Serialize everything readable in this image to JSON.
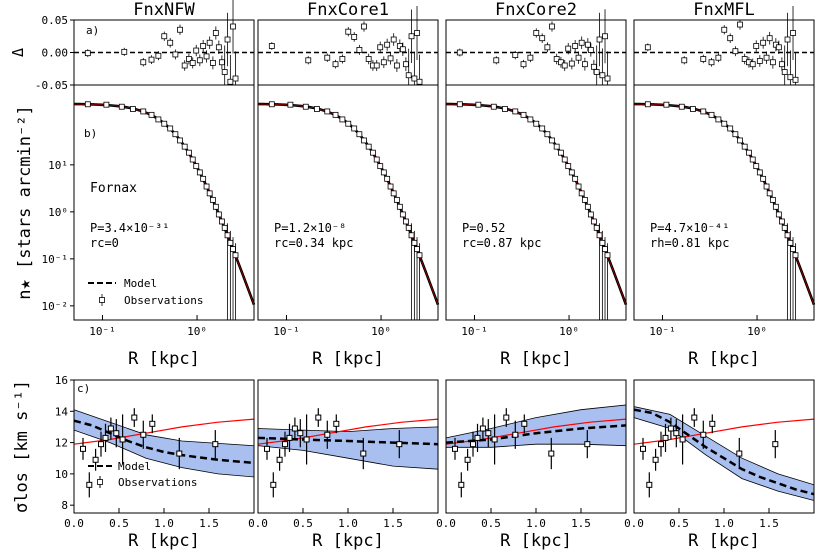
{
  "chart_data": {
    "type": "multi-panel scientific figure",
    "panel_titles": [
      "FnxNFW",
      "FnxCore1",
      "FnxCore2",
      "FnxMFL"
    ],
    "row_labels": {
      "a": "a)",
      "b": "b)",
      "c": "c)"
    },
    "xlabel": "R [kpc]",
    "residual": {
      "ylabel": "Δ",
      "ylim": [
        -0.05,
        0.05
      ],
      "yticks": [
        "0.05",
        "0.00",
        "-0.05"
      ],
      "reference_line": 0.0,
      "R_kpc": [
        0.07,
        0.17,
        0.27,
        0.33,
        0.39,
        0.45,
        0.52,
        0.59,
        0.66,
        0.74,
        0.82,
        0.9,
        0.98,
        1.07,
        1.16,
        1.26,
        1.36,
        1.47,
        1.58,
        1.7,
        1.83,
        1.96,
        2.1,
        2.25,
        2.4,
        2.55
      ],
      "panels": [
        [
          -0.001,
          0.001,
          -0.015,
          -0.011,
          -0.005,
          0.025,
          0.015,
          -0.003,
          0.035,
          -0.02,
          -0.01,
          -0.016,
          0.003,
          -0.012,
          0.01,
          -0.006,
          0.015,
          -0.016,
          0.03,
          0.008,
          -0.015,
          -0.03,
          0.02,
          -0.045,
          0.04,
          -0.04
        ],
        [
          0.01,
          -0.012,
          -0.008,
          -0.018,
          -0.01,
          0.032,
          0.024,
          0.004,
          0.04,
          -0.01,
          -0.02,
          -0.02,
          0.008,
          -0.015,
          0.012,
          -0.009,
          0.02,
          -0.02,
          0.01,
          0.005,
          -0.018,
          -0.035,
          0.025,
          -0.04,
          0.03,
          -0.045
        ],
        [
          0.0,
          -0.012,
          -0.004,
          -0.018,
          -0.008,
          0.03,
          0.022,
          0.008,
          0.04,
          -0.01,
          -0.015,
          -0.02,
          0.006,
          -0.017,
          0.01,
          -0.008,
          0.015,
          -0.018,
          0.012,
          0.004,
          -0.022,
          -0.03,
          0.02,
          -0.035,
          0.025,
          -0.04
        ],
        [
          0.008,
          -0.012,
          -0.01,
          -0.015,
          -0.008,
          0.035,
          0.022,
          0.002,
          0.043,
          -0.01,
          -0.015,
          -0.018,
          0.01,
          -0.013,
          0.015,
          -0.008,
          0.022,
          -0.015,
          0.012,
          0.008,
          -0.018,
          -0.03,
          0.02,
          -0.038,
          0.03,
          -0.042
        ]
      ]
    },
    "profile": {
      "ylabel": "n★ [stars arcmin⁻²]",
      "xscale": "log",
      "yscale": "log",
      "xlim": [
        0.05,
        4.0
      ],
      "ylim": [
        0.005,
        500
      ],
      "xticks": [
        {
          "v": 0.1,
          "label": "10⁻¹"
        },
        {
          "v": 1,
          "label": "10⁰"
        }
      ],
      "yticks": [
        {
          "v": 0.01,
          "label": "10⁻²"
        },
        {
          "v": 0.1,
          "label": "10⁻¹"
        },
        {
          "v": 1,
          "label": "10⁰"
        },
        {
          "v": 10,
          "label": "10¹"
        }
      ],
      "model_scale_radius_kpc": 0.7,
      "model_central_density": 200,
      "observations_R_kpc": [
        0.07,
        0.11,
        0.16,
        0.21,
        0.27,
        0.33,
        0.39,
        0.45,
        0.52,
        0.59,
        0.66,
        0.74,
        0.82,
        0.9,
        0.98,
        1.07,
        1.16,
        1.26,
        1.36,
        1.47,
        1.58,
        1.7,
        1.83,
        1.96,
        2.1,
        2.25,
        2.4,
        2.55
      ],
      "galaxy_label": "Fornax",
      "panel_text": [
        {
          "p": "P=3.4×10⁻³¹",
          "r": "rc=0"
        },
        {
          "p": "P=1.2×10⁻⁸",
          "r": "rc=0.34 kpc"
        },
        {
          "p": "P=0.52",
          "r": "rc=0.87 kpc"
        },
        {
          "p": "P=4.7×10⁻⁴¹",
          "r": "rh=0.81 kpc"
        }
      ],
      "legend": {
        "model": "Model",
        "observations": "Observations"
      }
    },
    "dispersion": {
      "ylabel": "σlos [km s⁻¹]",
      "xlim": [
        0.0,
        2.0
      ],
      "ylim": [
        7.5,
        16.0
      ],
      "xticks": [
        "0.0",
        "0.5",
        "1.0",
        "1.5"
      ],
      "yticks": [
        8,
        10,
        12,
        14,
        16
      ],
      "observations": {
        "R_kpc": [
          0.1,
          0.17,
          0.24,
          0.3,
          0.35,
          0.41,
          0.47,
          0.54,
          0.67,
          0.77,
          0.87,
          1.17,
          1.57
        ],
        "sigma": [
          11.6,
          9.3,
          10.9,
          11.9,
          12.3,
          12.9,
          12.6,
          12.2,
          13.6,
          12.5,
          13.2,
          11.3,
          11.9
        ],
        "err": [
          0.7,
          0.8,
          0.7,
          0.8,
          0.9,
          0.7,
          0.9,
          1.6,
          0.6,
          0.9,
          0.6,
          1.0,
          0.9
        ]
      },
      "reference_curve": [
        [
          0.0,
          11.9
        ],
        [
          0.4,
          12.2
        ],
        [
          0.8,
          12.6
        ],
        [
          1.2,
          13.0
        ],
        [
          1.6,
          13.3
        ],
        [
          2.0,
          13.5
        ]
      ],
      "panels": [
        {
          "model": [
            [
              0.0,
              13.4
            ],
            [
              0.2,
              13.1
            ],
            [
              0.4,
              12.6
            ],
            [
              0.6,
              12.1
            ],
            [
              0.8,
              11.7
            ],
            [
              1.0,
              11.4
            ],
            [
              1.2,
              11.2
            ],
            [
              1.4,
              11.05
            ],
            [
              1.6,
              10.9
            ],
            [
              1.8,
              10.8
            ],
            [
              2.0,
              10.7
            ]
          ],
          "band_upper": [
            [
              0.0,
              14.1
            ],
            [
              0.4,
              13.3
            ],
            [
              0.8,
              12.5
            ],
            [
              1.2,
              12.1
            ],
            [
              1.6,
              11.95
            ],
            [
              2.0,
              11.8
            ]
          ],
          "band_lower": [
            [
              0.0,
              12.8
            ],
            [
              0.4,
              12.0
            ],
            [
              0.8,
              11.0
            ],
            [
              1.2,
              10.4
            ],
            [
              1.6,
              10.0
            ],
            [
              2.0,
              9.8
            ]
          ]
        },
        {
          "model": [
            [
              0.0,
              12.3
            ],
            [
              0.5,
              12.2
            ],
            [
              1.0,
              12.1
            ],
            [
              1.5,
              12.0
            ],
            [
              2.0,
              11.9
            ]
          ],
          "band_upper": [
            [
              0.0,
              12.9
            ],
            [
              0.5,
              12.8
            ],
            [
              1.0,
              12.7
            ],
            [
              1.5,
              12.9
            ],
            [
              2.0,
              13.0
            ]
          ],
          "band_lower": [
            [
              0.0,
              11.8
            ],
            [
              0.5,
              11.5
            ],
            [
              1.0,
              11.0
            ],
            [
              1.5,
              10.5
            ],
            [
              2.0,
              10.3
            ]
          ]
        },
        {
          "model": [
            [
              0.0,
              12.0
            ],
            [
              0.5,
              12.2
            ],
            [
              1.0,
              12.6
            ],
            [
              1.5,
              12.9
            ],
            [
              2.0,
              13.1
            ]
          ],
          "band_upper": [
            [
              0.0,
              12.3
            ],
            [
              0.5,
              12.9
            ],
            [
              1.0,
              13.6
            ],
            [
              1.5,
              14.1
            ],
            [
              2.0,
              14.4
            ]
          ],
          "band_lower": [
            [
              0.0,
              11.7
            ],
            [
              0.5,
              11.7
            ],
            [
              1.0,
              11.9
            ],
            [
              1.5,
              11.9
            ],
            [
              2.0,
              11.8
            ]
          ]
        },
        {
          "model": [
            [
              0.0,
              14.1
            ],
            [
              0.2,
              13.9
            ],
            [
              0.4,
              13.3
            ],
            [
              0.6,
              12.5
            ],
            [
              0.8,
              11.7
            ],
            [
              1.0,
              11.0
            ],
            [
              1.2,
              10.3
            ],
            [
              1.4,
              9.8
            ],
            [
              1.6,
              9.4
            ],
            [
              1.8,
              9.0
            ],
            [
              2.0,
              8.7
            ]
          ],
          "band_upper": [
            [
              0.0,
              14.3
            ],
            [
              0.4,
              13.8
            ],
            [
              0.8,
              12.4
            ],
            [
              1.2,
              11.0
            ],
            [
              1.6,
              10.0
            ],
            [
              2.0,
              9.3
            ]
          ],
          "band_lower": [
            [
              0.0,
              13.6
            ],
            [
              0.4,
              12.9
            ],
            [
              0.8,
              11.2
            ],
            [
              1.2,
              9.7
            ],
            [
              1.6,
              8.9
            ],
            [
              2.0,
              8.3
            ]
          ]
        }
      ],
      "legend": {
        "model": "Model",
        "observations": "Observations"
      }
    },
    "colors": {
      "band": "#a8bff0",
      "reference": "#ff0000",
      "model": "#000000",
      "marker": "#000000"
    }
  }
}
